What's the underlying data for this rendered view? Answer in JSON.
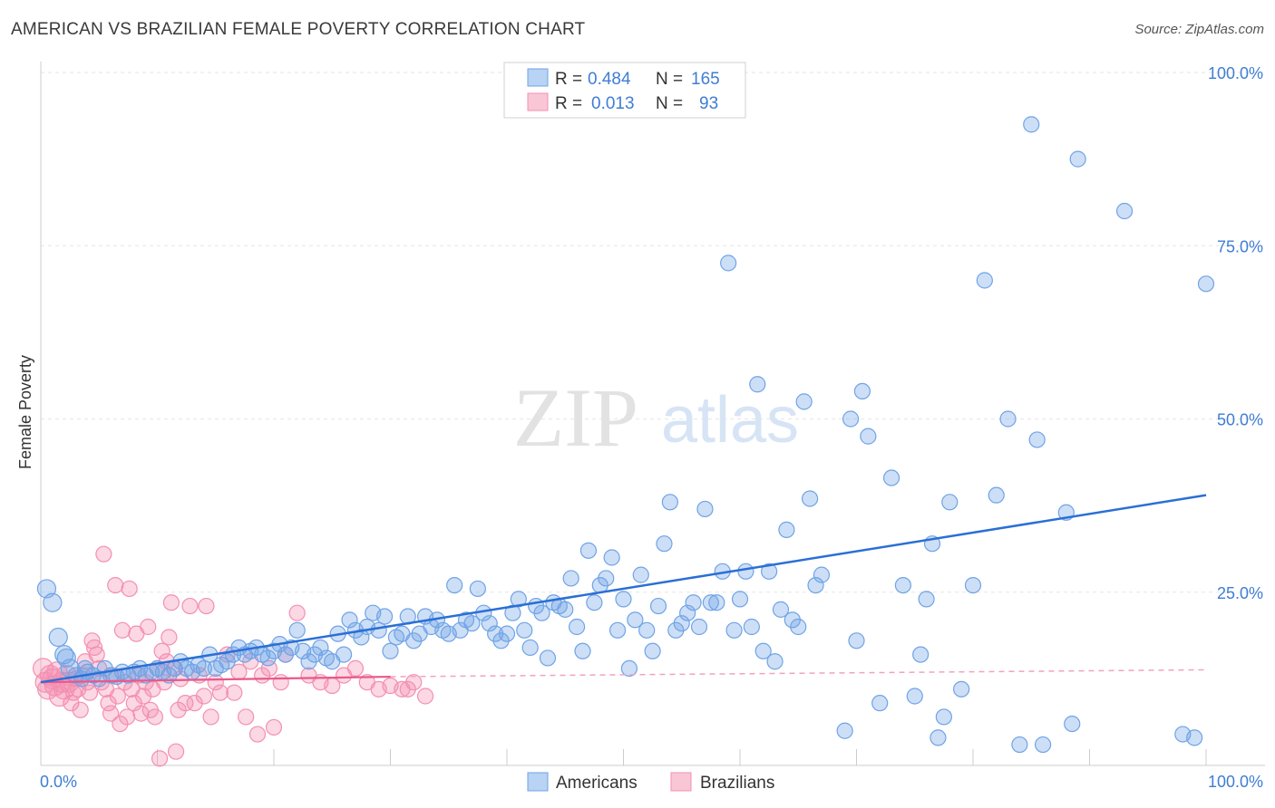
{
  "title": "AMERICAN VS BRAZILIAN FEMALE POVERTY CORRELATION CHART",
  "source": "Source: ZipAtlas.com",
  "colors": {
    "americans": "#6fa3e6",
    "americans_line": "#2a6fd6",
    "brazilians": "#f48fb1",
    "brazilians_line": "#e8588a",
    "accent": "#3f7dd4"
  },
  "stats_box": {
    "rows": [
      {
        "r_label": "R =",
        "r_value": "0.484",
        "n_label": "N =",
        "n_value": "165"
      },
      {
        "r_label": "R =",
        "r_value": "0.013",
        "n_label": "N =",
        "n_value": "93"
      }
    ]
  },
  "chart_data": {
    "type": "scatter",
    "title": "AMERICAN VS BRAZILIAN FEMALE POVERTY CORRELATION CHART",
    "xlabel": "",
    "ylabel": "Female Poverty",
    "xlim": [
      0,
      100
    ],
    "ylim": [
      0,
      100
    ],
    "x_tick_labels": [
      "0.0%",
      "100.0%"
    ],
    "y_tick_labels": [
      "25.0%",
      "50.0%",
      "75.0%",
      "100.0%"
    ],
    "y_ticks": [
      25,
      50,
      75,
      100
    ],
    "grid": true,
    "legend_position": "bottom-center",
    "watermark": "ZIPatlas",
    "series": [
      {
        "name": "Americans",
        "trend": {
          "x": [
            0,
            100
          ],
          "y": [
            12.0,
            39.0
          ]
        },
        "points": [
          [
            0.5,
            25.5
          ],
          [
            1,
            23.5
          ],
          [
            1.5,
            18.5
          ],
          [
            2,
            16
          ],
          [
            2.2,
            15.5
          ],
          [
            2.5,
            14
          ],
          [
            3,
            13
          ],
          [
            3.5,
            12.5
          ],
          [
            3.8,
            14
          ],
          [
            4,
            13.5
          ],
          [
            4.5,
            13
          ],
          [
            5,
            12.5
          ],
          [
            5.5,
            14
          ],
          [
            6,
            13
          ],
          [
            6.5,
            12.8
          ],
          [
            7,
            13.5
          ],
          [
            7.5,
            13
          ],
          [
            8,
            13.5
          ],
          [
            8.5,
            14
          ],
          [
            9,
            13
          ],
          [
            9.5,
            13.5
          ],
          [
            10,
            14
          ],
          [
            10.5,
            13.5
          ],
          [
            11,
            13
          ],
          [
            11.5,
            14
          ],
          [
            12,
            15
          ],
          [
            12.5,
            14
          ],
          [
            13,
            13.5
          ],
          [
            13.5,
            14.5
          ],
          [
            14,
            14
          ],
          [
            14.5,
            16
          ],
          [
            15,
            14
          ],
          [
            15.5,
            14.5
          ],
          [
            16,
            15
          ],
          [
            16.5,
            16
          ],
          [
            17,
            17
          ],
          [
            17.5,
            16
          ],
          [
            18,
            16.5
          ],
          [
            18.5,
            17
          ],
          [
            19,
            16
          ],
          [
            19.5,
            15.5
          ],
          [
            20,
            16.5
          ],
          [
            20.5,
            17.5
          ],
          [
            21,
            16
          ],
          [
            21.5,
            17
          ],
          [
            22,
            19.5
          ],
          [
            22.5,
            16.5
          ],
          [
            23,
            15
          ],
          [
            23.5,
            16
          ],
          [
            24,
            17
          ],
          [
            24.5,
            15.5
          ],
          [
            25,
            15
          ],
          [
            25.5,
            19
          ],
          [
            26,
            16
          ],
          [
            26.5,
            21
          ],
          [
            27,
            19.5
          ],
          [
            27.5,
            18.5
          ],
          [
            28,
            20
          ],
          [
            28.5,
            22
          ],
          [
            29,
            19.5
          ],
          [
            29.5,
            21.5
          ],
          [
            30,
            16.5
          ],
          [
            30.5,
            18.5
          ],
          [
            31,
            19
          ],
          [
            31.5,
            21.5
          ],
          [
            32,
            18
          ],
          [
            32.5,
            19
          ],
          [
            33,
            21.5
          ],
          [
            33.5,
            20
          ],
          [
            34,
            21
          ],
          [
            34.5,
            19.5
          ],
          [
            35,
            19
          ],
          [
            35.5,
            26
          ],
          [
            36,
            19.5
          ],
          [
            36.5,
            21
          ],
          [
            37,
            20.5
          ],
          [
            37.5,
            25.5
          ],
          [
            38,
            22
          ],
          [
            38.5,
            20.5
          ],
          [
            39,
            19
          ],
          [
            39.5,
            18
          ],
          [
            40,
            19
          ],
          [
            40.5,
            22
          ],
          [
            41,
            24
          ],
          [
            41.5,
            19.5
          ],
          [
            42,
            17
          ],
          [
            42.5,
            23
          ],
          [
            43,
            22
          ],
          [
            43.5,
            15.5
          ],
          [
            44,
            23.5
          ],
          [
            44.5,
            23
          ],
          [
            45,
            22.5
          ],
          [
            45.5,
            27
          ],
          [
            46,
            20
          ],
          [
            46.5,
            16.5
          ],
          [
            47,
            31
          ],
          [
            47.5,
            23.5
          ],
          [
            48,
            26
          ],
          [
            48.5,
            27
          ],
          [
            49,
            30
          ],
          [
            49.5,
            19.5
          ],
          [
            50,
            24
          ],
          [
            50.5,
            14
          ],
          [
            51,
            21
          ],
          [
            51.5,
            27.5
          ],
          [
            52,
            19.5
          ],
          [
            52.5,
            16.5
          ],
          [
            53,
            23
          ],
          [
            53.5,
            32
          ],
          [
            54,
            38
          ],
          [
            54.5,
            19.5
          ],
          [
            55,
            20.5
          ],
          [
            55.5,
            22
          ],
          [
            56,
            23.5
          ],
          [
            56.5,
            20
          ],
          [
            57,
            37
          ],
          [
            57.5,
            23.5
          ],
          [
            58,
            23.5
          ],
          [
            58.5,
            28
          ],
          [
            59,
            72.5
          ],
          [
            59.5,
            19.5
          ],
          [
            60,
            24
          ],
          [
            60.5,
            28
          ],
          [
            61,
            20
          ],
          [
            61.5,
            55
          ],
          [
            62,
            16.5
          ],
          [
            62.5,
            28
          ],
          [
            63,
            15
          ],
          [
            63.5,
            22.5
          ],
          [
            64,
            34
          ],
          [
            64.5,
            21
          ],
          [
            65,
            20
          ],
          [
            65.5,
            52.5
          ],
          [
            66,
            38.5
          ],
          [
            66.5,
            26
          ],
          [
            67,
            27.5
          ],
          [
            69,
            5
          ],
          [
            69.5,
            50
          ],
          [
            70,
            18
          ],
          [
            70.5,
            54
          ],
          [
            71,
            47.5
          ],
          [
            72,
            9
          ],
          [
            73,
            41.5
          ],
          [
            74,
            26
          ],
          [
            75,
            10
          ],
          [
            75.5,
            16
          ],
          [
            76,
            24
          ],
          [
            76.5,
            32
          ],
          [
            77,
            4
          ],
          [
            77.5,
            7
          ],
          [
            78,
            38
          ],
          [
            79,
            11
          ],
          [
            80,
            26
          ],
          [
            81,
            70
          ],
          [
            82,
            39
          ],
          [
            83,
            50
          ],
          [
            85,
            92.5
          ],
          [
            85.5,
            47
          ],
          [
            86,
            3
          ],
          [
            88,
            36.5
          ],
          [
            88.5,
            6
          ],
          [
            89,
            87.5
          ],
          [
            93,
            80
          ],
          [
            98,
            4.5
          ],
          [
            99,
            4
          ],
          [
            100,
            69.5
          ],
          [
            84,
            3
          ]
        ]
      },
      {
        "name": "Brazilians",
        "trend": {
          "x": [
            0,
            30
          ],
          "y": [
            12.0,
            12.8
          ]
        },
        "dashed_extension": {
          "x": [
            30,
            100
          ],
          "y": [
            12.8,
            13.8
          ]
        },
        "points": [
          [
            0.2,
            14
          ],
          [
            0.4,
            12
          ],
          [
            0.6,
            11
          ],
          [
            0.8,
            13
          ],
          [
            1,
            12.5
          ],
          [
            1.2,
            11.5
          ],
          [
            1.4,
            13.5
          ],
          [
            1.6,
            10
          ],
          [
            1.8,
            12
          ],
          [
            2,
            11
          ],
          [
            2.2,
            13
          ],
          [
            2.4,
            12
          ],
          [
            2.6,
            9
          ],
          [
            2.8,
            10.5
          ],
          [
            3,
            12.5
          ],
          [
            3.2,
            11
          ],
          [
            3.4,
            8
          ],
          [
            3.6,
            13
          ],
          [
            3.8,
            15
          ],
          [
            4,
            12
          ],
          [
            4.2,
            10.5
          ],
          [
            4.4,
            18
          ],
          [
            4.6,
            17
          ],
          [
            4.8,
            16
          ],
          [
            5,
            14
          ],
          [
            5.2,
            12
          ],
          [
            5.4,
            30.5
          ],
          [
            5.6,
            11
          ],
          [
            5.8,
            9
          ],
          [
            6,
            7.5
          ],
          [
            6.2,
            13
          ],
          [
            6.4,
            26
          ],
          [
            6.6,
            10
          ],
          [
            6.8,
            6
          ],
          [
            7,
            19.5
          ],
          [
            7.2,
            12
          ],
          [
            7.4,
            7
          ],
          [
            7.6,
            25.5
          ],
          [
            7.8,
            11
          ],
          [
            8,
            9
          ],
          [
            8.2,
            19
          ],
          [
            8.4,
            13
          ],
          [
            8.6,
            7.5
          ],
          [
            8.8,
            10
          ],
          [
            9,
            12
          ],
          [
            9.2,
            20
          ],
          [
            9.4,
            8
          ],
          [
            9.6,
            11
          ],
          [
            9.8,
            7
          ],
          [
            10,
            14
          ],
          [
            10.2,
            1
          ],
          [
            10.4,
            16.5
          ],
          [
            10.6,
            12
          ],
          [
            10.8,
            15
          ],
          [
            11,
            18.5
          ],
          [
            11.2,
            23.5
          ],
          [
            11.4,
            14
          ],
          [
            11.6,
            2
          ],
          [
            11.8,
            8
          ],
          [
            12,
            12.5
          ],
          [
            12.4,
            9
          ],
          [
            12.8,
            23
          ],
          [
            13.2,
            9
          ],
          [
            13.6,
            13
          ],
          [
            14,
            10
          ],
          [
            14.2,
            23
          ],
          [
            14.6,
            7
          ],
          [
            15,
            12
          ],
          [
            15.4,
            10.5
          ],
          [
            16,
            16
          ],
          [
            16.6,
            10.5
          ],
          [
            17,
            13.5
          ],
          [
            17.6,
            7
          ],
          [
            18,
            15
          ],
          [
            18.6,
            4.5
          ],
          [
            19,
            13
          ],
          [
            19.6,
            14
          ],
          [
            20,
            5.5
          ],
          [
            20.6,
            12
          ],
          [
            21,
            16
          ],
          [
            22,
            22
          ],
          [
            23,
            13
          ],
          [
            24,
            12
          ],
          [
            25,
            11.5
          ],
          [
            26,
            13
          ],
          [
            27,
            14
          ],
          [
            28,
            12
          ],
          [
            29,
            11
          ],
          [
            30,
            11.5
          ],
          [
            31,
            11
          ],
          [
            31.5,
            11
          ],
          [
            32,
            12
          ],
          [
            33,
            10
          ]
        ]
      }
    ]
  },
  "legend": {
    "items": [
      "Americans",
      "Brazilians"
    ]
  }
}
